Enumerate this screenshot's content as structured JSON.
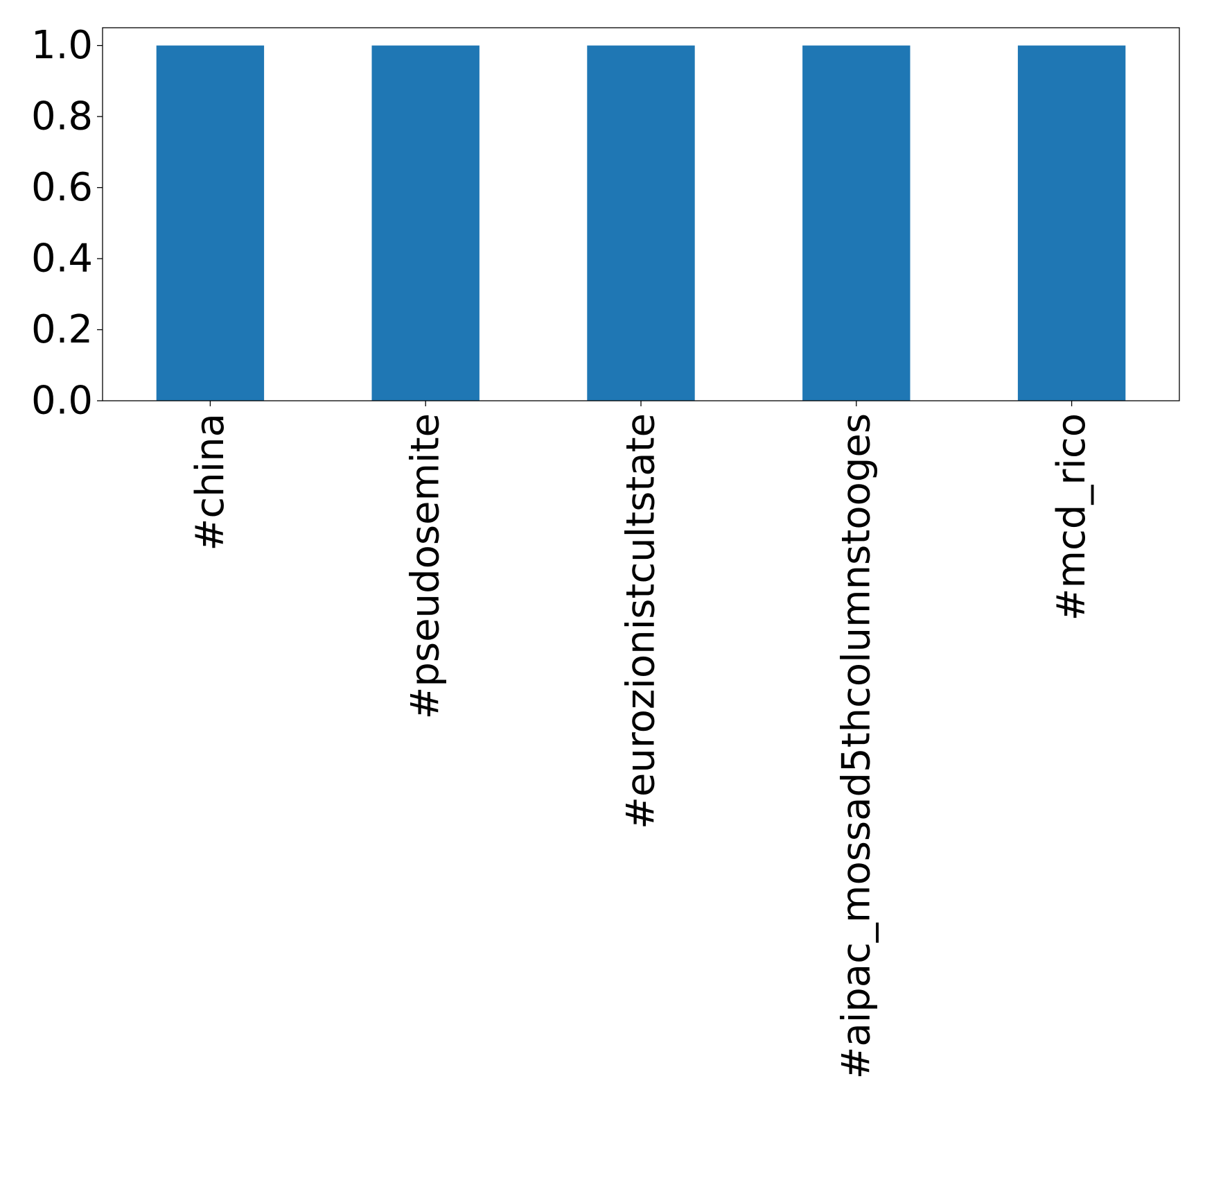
{
  "chart_data": {
    "type": "bar",
    "title": "",
    "xlabel": "",
    "ylabel": "",
    "categories": [
      "#china",
      "#pseudosemite",
      "#eurozionistcultstate",
      "#aipac_mossad5thcolumnstooges",
      "#mcd_rico"
    ],
    "values": [
      1.0,
      1.0,
      1.0,
      1.0,
      1.0
    ],
    "ylim": [
      0,
      1.05
    ],
    "yticks": [
      "0.0",
      "0.2",
      "0.4",
      "0.6",
      "0.8",
      "1.0"
    ],
    "grid": false,
    "legend": "none",
    "bar_color": "#1f77b4"
  }
}
